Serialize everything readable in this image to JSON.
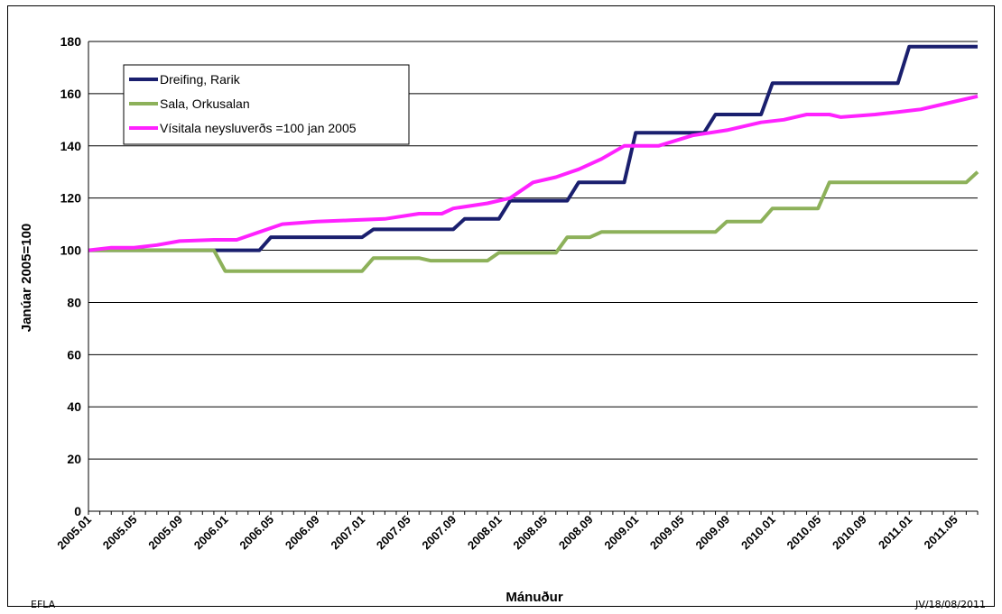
{
  "footer": {
    "left": "EFLA",
    "right": "JV/18/08/2011"
  },
  "colors": {
    "rarik": "#1a1f6e",
    "orkusalan": "#8db15a",
    "cpi": "#ff22ff"
  },
  "chart_data": {
    "type": "line",
    "title": "",
    "xlabel": "Mánuður",
    "ylabel": "Janúar 2005=100",
    "ylim": [
      0,
      180
    ],
    "yticks": [
      0,
      20,
      40,
      60,
      80,
      100,
      120,
      140,
      160,
      180
    ],
    "grid": true,
    "legend": "top-left",
    "n_months": 79,
    "x_tick_labels": [
      "2005.01",
      "2005.05",
      "2005.09",
      "2006.01",
      "2006.05",
      "2006.09",
      "2007.01",
      "2007.05",
      "2007.09",
      "2008.01",
      "2008.05",
      "2008.09",
      "2009.01",
      "2009.05",
      "2009.09",
      "2010.01",
      "2010.05",
      "2010.09",
      "2011.01",
      "2011.05"
    ],
    "series": [
      {
        "name": "Dreifing, Rarik",
        "color": "#1a1f6e",
        "steps": [
          [
            "2005.01",
            100
          ],
          [
            "2006.05",
            105
          ],
          [
            "2007.02",
            108
          ],
          [
            "2007.10",
            112
          ],
          [
            "2008.02",
            119
          ],
          [
            "2008.08",
            126
          ],
          [
            "2009.01",
            145
          ],
          [
            "2009.08",
            152
          ],
          [
            "2010.01",
            164
          ],
          [
            "2011.01",
            178
          ]
        ]
      },
      {
        "name": "Sala, Orkusalan",
        "color": "#8db15a",
        "steps": [
          [
            "2005.01",
            100
          ],
          [
            "2006.01",
            92
          ],
          [
            "2007.02",
            97
          ],
          [
            "2007.07",
            96
          ],
          [
            "2008.01",
            99
          ],
          [
            "2008.07",
            105
          ],
          [
            "2008.10",
            107
          ],
          [
            "2009.09",
            111
          ],
          [
            "2010.01",
            116
          ],
          [
            "2010.06",
            126
          ],
          [
            "2011.07",
            130
          ]
        ]
      },
      {
        "name": "Vísitala neysluverðs =100 jan 2005",
        "color": "#ff22ff",
        "points": [
          [
            "2005.01",
            100
          ],
          [
            "2005.03",
            101
          ],
          [
            "2005.05",
            101
          ],
          [
            "2005.07",
            102
          ],
          [
            "2005.09",
            103.5
          ],
          [
            "2005.12",
            104
          ],
          [
            "2006.02",
            104
          ],
          [
            "2006.04",
            107
          ],
          [
            "2006.06",
            110
          ],
          [
            "2006.09",
            111
          ],
          [
            "2006.12",
            111.5
          ],
          [
            "2007.03",
            112
          ],
          [
            "2007.06",
            114
          ],
          [
            "2007.08",
            114
          ],
          [
            "2007.09",
            116
          ],
          [
            "2007.12",
            118
          ],
          [
            "2008.02",
            120
          ],
          [
            "2008.04",
            126
          ],
          [
            "2008.06",
            128
          ],
          [
            "2008.08",
            131
          ],
          [
            "2008.10",
            135
          ],
          [
            "2008.12",
            140
          ],
          [
            "2009.03",
            140
          ],
          [
            "2009.06",
            144
          ],
          [
            "2009.09",
            146
          ],
          [
            "2009.12",
            149
          ],
          [
            "2010.02",
            150
          ],
          [
            "2010.04",
            152
          ],
          [
            "2010.06",
            152
          ],
          [
            "2010.07",
            151
          ],
          [
            "2010.10",
            152
          ],
          [
            "2010.12",
            153
          ],
          [
            "2011.02",
            154
          ],
          [
            "2011.04",
            156
          ],
          [
            "2011.07",
            159
          ]
        ]
      }
    ]
  }
}
